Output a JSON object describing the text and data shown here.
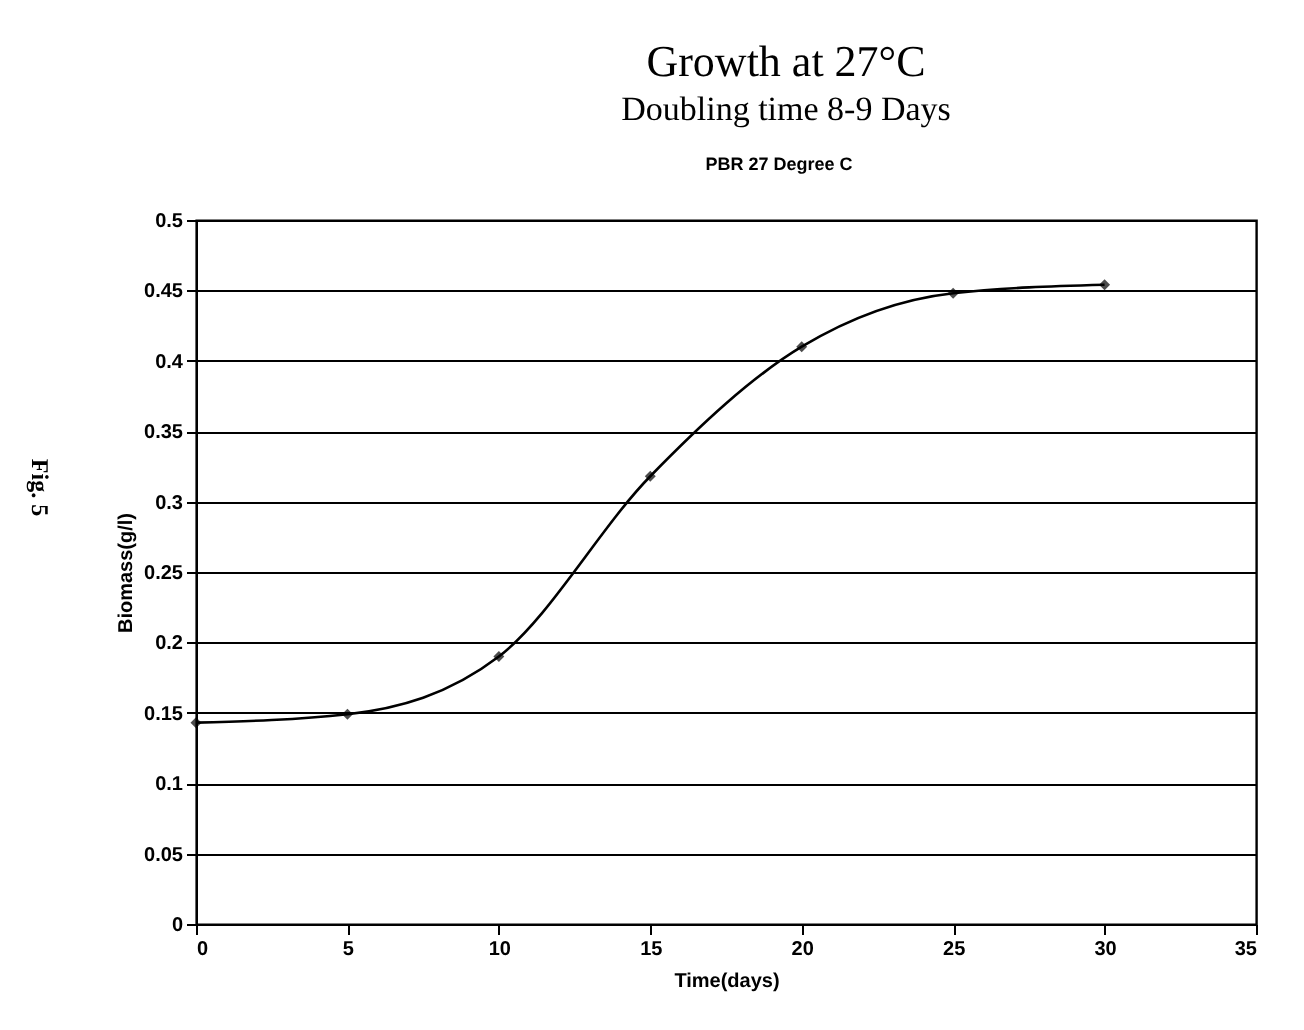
{
  "chart_data": {
    "type": "line",
    "title": "Growth at 27°C",
    "subtitle": "Doubling time 8-9 Days",
    "annotations": [
      "PBR 27 Degree C",
      "Fig. 5"
    ],
    "xlabel": "Time(days)",
    "ylabel": "Biomass(g/l)",
    "x": [
      0,
      5,
      10,
      15,
      20,
      25,
      30
    ],
    "series": [
      {
        "color": "#000000",
        "values": [
          0.143,
          0.149,
          0.19,
          0.318,
          0.41,
          0.448,
          0.454
        ]
      }
    ],
    "xlim": [
      0,
      35
    ],
    "xticks": [
      0,
      5,
      10,
      15,
      20,
      25,
      30,
      35
    ],
    "ylim": [
      0,
      0.5
    ],
    "yticks": [
      0,
      0.05,
      0.1,
      0.15,
      0.2,
      0.25,
      0.3,
      0.35,
      0.4,
      0.45,
      0.5
    ],
    "grid": "y",
    "marker": "diamond",
    "line_style": "solid",
    "legend": false
  }
}
